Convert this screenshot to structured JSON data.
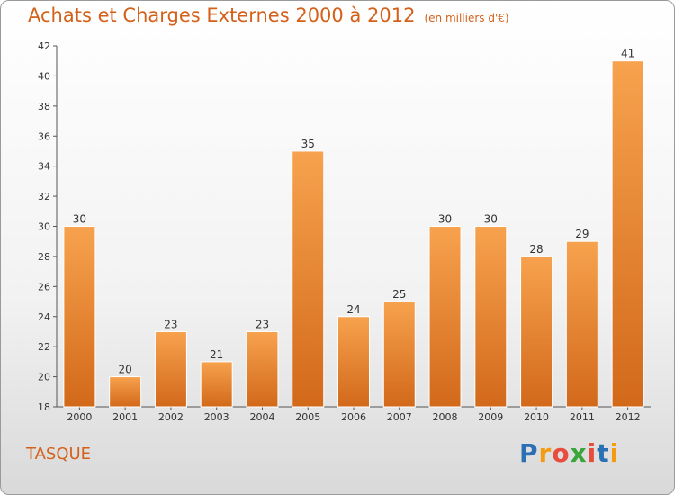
{
  "title": "Achats et Charges Externes 2000 à 2012",
  "unit": "(en milliers d'€)",
  "commune": "TASQUE",
  "logo": {
    "letters": [
      "P",
      "r",
      "o",
      "x",
      "i",
      "t",
      "i"
    ],
    "colors": [
      "#2b6fb5",
      "#f39c12",
      "#e74c3c",
      "#3aa53a",
      "#e74c3c",
      "#2b6fb5",
      "#f39c12"
    ]
  },
  "chart_data": {
    "type": "bar",
    "categories": [
      "2000",
      "2001",
      "2002",
      "2003",
      "2004",
      "2005",
      "2006",
      "2007",
      "2008",
      "2009",
      "2010",
      "2011",
      "2012"
    ],
    "values": [
      30,
      20,
      23,
      21,
      23,
      35,
      24,
      25,
      30,
      30,
      28,
      29,
      41
    ],
    "ylim": [
      18,
      42
    ],
    "yticks": [
      18,
      20,
      22,
      24,
      26,
      28,
      30,
      32,
      34,
      36,
      38,
      40,
      42
    ],
    "grid": false,
    "bar_color": "#f0913a"
  }
}
